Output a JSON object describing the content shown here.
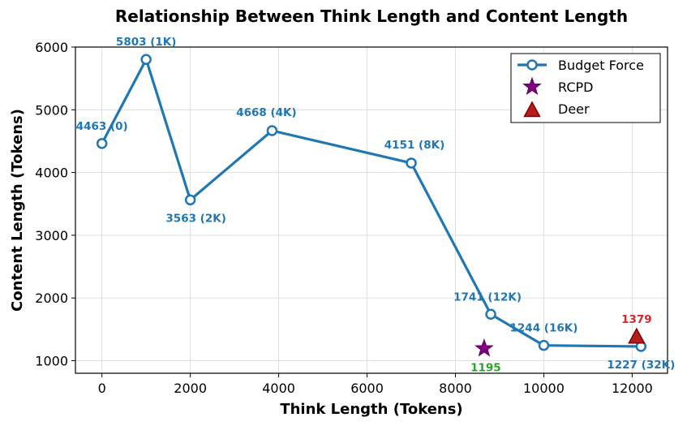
{
  "chart_data": {
    "type": "line",
    "title": "Relationship Between Think Length and Content Length",
    "xlabel": "Think Length (Tokens)",
    "ylabel": "Content Length (Tokens)",
    "xlim": [
      -600,
      12800
    ],
    "ylim": [
      800,
      6000
    ],
    "xticks": [
      0,
      2000,
      4000,
      6000,
      8000,
      10000,
      12000
    ],
    "yticks": [
      1000,
      2000,
      3000,
      4000,
      5000,
      6000
    ],
    "grid": true,
    "legend_position": "top-right",
    "series": [
      {
        "name": "Budget Force",
        "marker": "circle",
        "color": "#1f77b4",
        "points": [
          {
            "x": 0,
            "y": 4463,
            "label": "4463 (0)"
          },
          {
            "x": 1000,
            "y": 5803,
            "label": "5803 (1K)"
          },
          {
            "x": 2000,
            "y": 3563,
            "label": "3563 (2K)"
          },
          {
            "x": 3850,
            "y": 4668,
            "label": "4668 (4K)"
          },
          {
            "x": 7000,
            "y": 4151,
            "label": "4151 (8K)"
          },
          {
            "x": 8800,
            "y": 1741,
            "label": "1741 (12K)"
          },
          {
            "x": 10000,
            "y": 1244,
            "label": "1244 (16K)"
          },
          {
            "x": 12200,
            "y": 1227,
            "label": "1227 (32K)"
          }
        ]
      },
      {
        "name": "RCPD",
        "marker": "star",
        "color": "#800080",
        "label_color": "#2ca02c",
        "points": [
          {
            "x": 8650,
            "y": 1195,
            "label": "1195"
          }
        ]
      },
      {
        "name": "Deer",
        "marker": "triangle",
        "color": "#d62728",
        "label_color": "#d62728",
        "points": [
          {
            "x": 12100,
            "y": 1379,
            "label": "1379"
          }
        ]
      }
    ]
  }
}
